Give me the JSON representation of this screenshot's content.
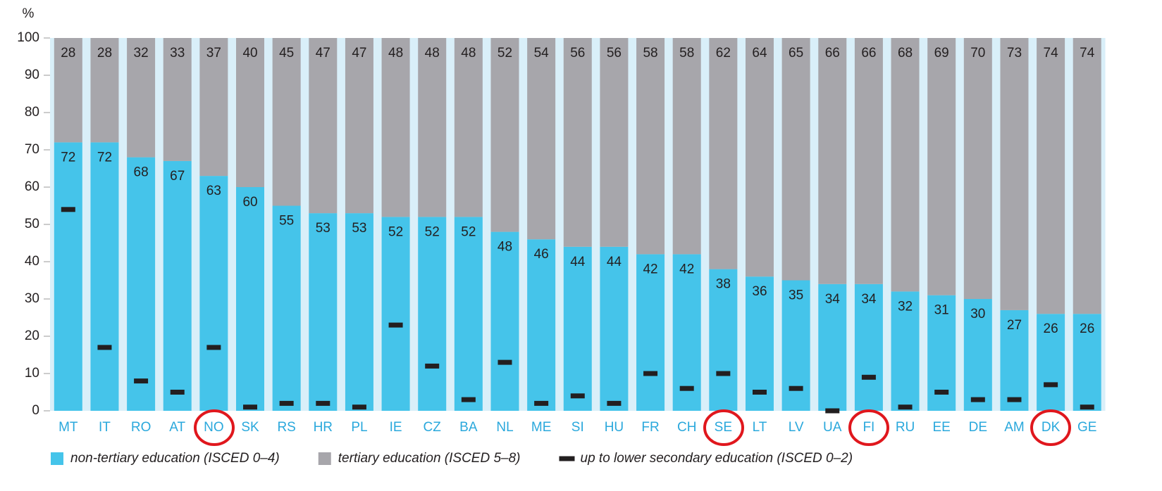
{
  "chart_data": {
    "type": "stacked_bar",
    "y_label": "%",
    "categories": [
      "MT",
      "IT",
      "RO",
      "AT",
      "NO",
      "SK",
      "RS",
      "HR",
      "PL",
      "IE",
      "CZ",
      "BA",
      "NL",
      "ME",
      "SI",
      "HU",
      "FR",
      "CH",
      "SE",
      "LT",
      "LV",
      "UA",
      "FI",
      "RU",
      "EE",
      "DE",
      "AM",
      "DK",
      "GE"
    ],
    "series": [
      {
        "name": "non-tertiary education (ISCED 0–4)",
        "color": "#45c4ea",
        "values": [
          72,
          72,
          68,
          67,
          63,
          60,
          55,
          53,
          53,
          52,
          52,
          52,
          48,
          46,
          44,
          44,
          42,
          42,
          38,
          36,
          35,
          34,
          34,
          32,
          31,
          30,
          27,
          26,
          26
        ]
      },
      {
        "name": "tertiary education (ISCED 5–8)",
        "color": "#a7a6ab",
        "values": [
          28,
          28,
          32,
          33,
          37,
          40,
          45,
          47,
          47,
          48,
          48,
          48,
          52,
          54,
          56,
          56,
          58,
          58,
          62,
          64,
          65,
          66,
          66,
          68,
          69,
          70,
          73,
          74,
          74
        ]
      }
    ],
    "markers": {
      "name": "up to lower secondary education (ISCED 0–2)",
      "color": "#231f20",
      "values": [
        54,
        17,
        8,
        5,
        17,
        1,
        2,
        2,
        1,
        23,
        12,
        3,
        13,
        2,
        4,
        2,
        10,
        6,
        10,
        5,
        6,
        0,
        9,
        1,
        5,
        3,
        3,
        7,
        1
      ]
    },
    "ylim": [
      0,
      100
    ],
    "yticks": [
      0,
      10,
      20,
      30,
      40,
      50,
      60,
      70,
      80,
      90,
      100
    ],
    "background": "#d9eff9",
    "category_color": "#2aa8dc"
  }
}
